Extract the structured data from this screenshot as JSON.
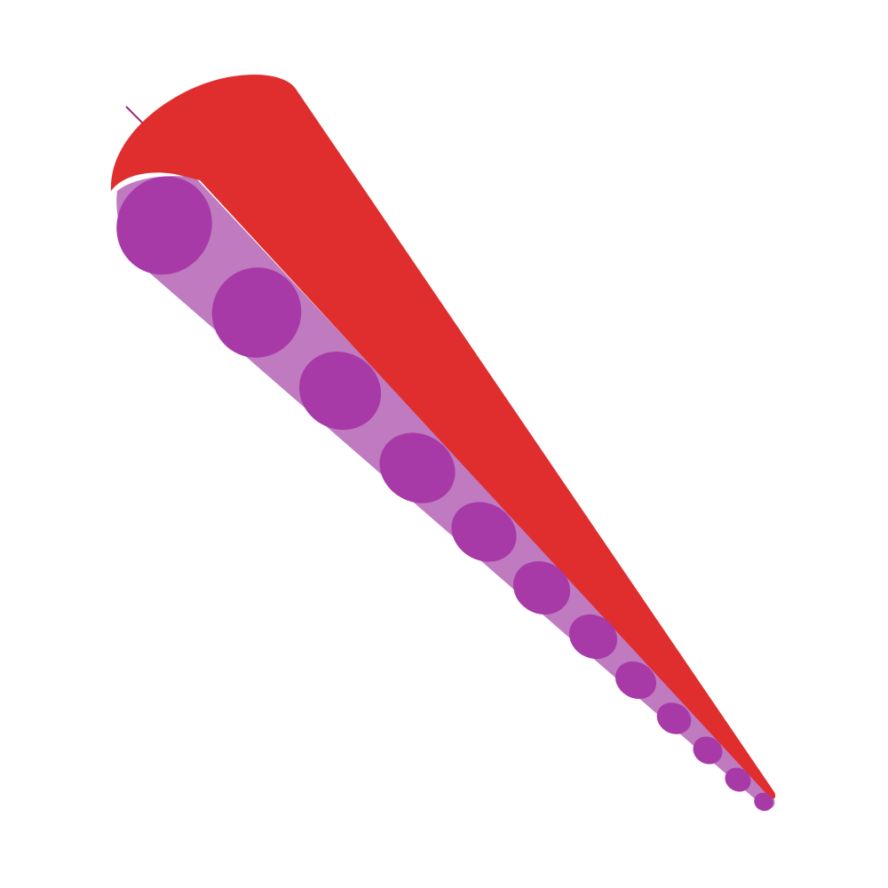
{
  "illustration": {
    "subject": "tentacle-icon",
    "colors": {
      "background": "#ffffff",
      "body": "#e02e2e",
      "underside": "#bf7ac0",
      "sucker": "#a83aa8",
      "tip_line": "#9a2a7a"
    },
    "sucker_count": 12
  }
}
